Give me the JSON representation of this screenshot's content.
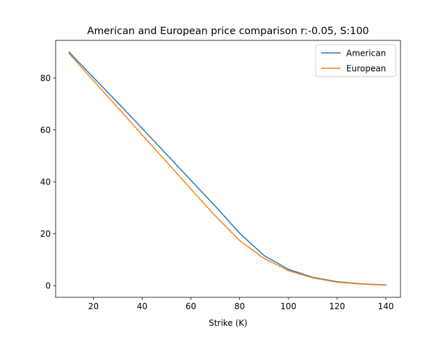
{
  "chart_data": {
    "type": "line",
    "title": "American and European price comparison r:-0.05, S:100",
    "xlabel": "Strike (K)",
    "ylabel": "",
    "xlim": [
      4.5,
      146
    ],
    "ylim": [
      -4.5,
      94.5
    ],
    "xticks": [
      20,
      40,
      60,
      80,
      100,
      120,
      140
    ],
    "yticks": [
      0,
      20,
      40,
      60,
      80
    ],
    "x": [
      10,
      20,
      30,
      40,
      50,
      60,
      70,
      80,
      90,
      100,
      110,
      120,
      130,
      140
    ],
    "series": [
      {
        "name": "American",
        "color": "#1f77b4",
        "values": [
          90.0,
          80.2,
          70.5,
          60.6,
          50.6,
          40.6,
          30.6,
          20.2,
          11.6,
          6.3,
          3.2,
          1.5,
          0.7,
          0.3
        ]
      },
      {
        "name": "European",
        "color": "#ff7f0e",
        "values": [
          89.5,
          79.0,
          68.6,
          58.1,
          47.7,
          37.2,
          26.9,
          17.4,
          10.5,
          5.8,
          3.0,
          1.3,
          0.6,
          0.2
        ]
      }
    ],
    "legend_position": "top-right",
    "grid": false
  }
}
